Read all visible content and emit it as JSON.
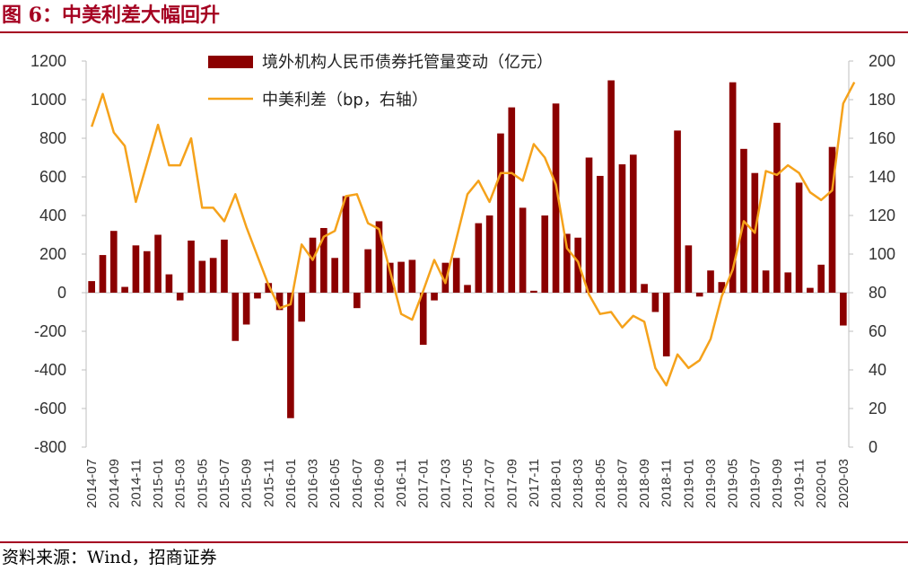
{
  "figure": {
    "title": "图 6：中美利差大幅回升",
    "source": "资料来源：Wind，招商证券",
    "colors": {
      "accent": "#a50021",
      "bar": "#8b0000",
      "line": "#f5a21b"
    }
  },
  "chart_data": {
    "type": "bar+line",
    "x_labels": [
      "2014-07",
      "2014-09",
      "2014-11",
      "2015-01",
      "2015-03",
      "2015-05",
      "2015-07",
      "2015-09",
      "2015-11",
      "2016-01",
      "2016-03",
      "2016-05",
      "2016-07",
      "2016-09",
      "2016-11",
      "2017-01",
      "2017-03",
      "2017-05",
      "2017-07",
      "2017-09",
      "2017-11",
      "2018-01",
      "2018-03",
      "2018-05",
      "2018-07",
      "2018-09",
      "2018-11",
      "2019-01",
      "2019-03",
      "2019-05",
      "2019-07",
      "2019-09",
      "2019-11",
      "2020-01",
      "2020-03"
    ],
    "series": [
      {
        "name": "境外机构人民币债券托管量变动（亿元）",
        "type": "bar",
        "axis": "left",
        "color": "#8b0000",
        "values": [
          60,
          195,
          320,
          30,
          245,
          215,
          300,
          95,
          -40,
          270,
          165,
          180,
          275,
          -250,
          -165,
          -30,
          50,
          -90,
          -650,
          -150,
          285,
          335,
          180,
          500,
          -80,
          225,
          370,
          155,
          160,
          170,
          -270,
          -40,
          155,
          180,
          40,
          360,
          400,
          825,
          960,
          440,
          10,
          400,
          980,
          305,
          285,
          700,
          605,
          1100,
          665,
          715,
          45,
          -100,
          -330,
          840,
          245,
          -20,
          115,
          55,
          1090,
          745,
          620,
          115,
          880,
          105,
          570,
          25,
          145,
          755,
          -170
        ]
      },
      {
        "name": "中美利差（bp，右轴）",
        "type": "line",
        "axis": "right",
        "color": "#f5a21b",
        "values": [
          166,
          183,
          163,
          156,
          127,
          147,
          167,
          146,
          146,
          160,
          124,
          124,
          117,
          131,
          114,
          99,
          84,
          72,
          74,
          105,
          97,
          109,
          112,
          130,
          131,
          116,
          113,
          91,
          69,
          66,
          81,
          97,
          85,
          108,
          131,
          138,
          127,
          142,
          142,
          138,
          157,
          150,
          136,
          103,
          96,
          79,
          69,
          70,
          62,
          68,
          65,
          41,
          32,
          48,
          41,
          45,
          56,
          78,
          92,
          117,
          111,
          143,
          141,
          146,
          142,
          132,
          128,
          133,
          178,
          189
        ]
      }
    ],
    "left_axis": {
      "min": -800,
      "max": 1200,
      "step": 200
    },
    "right_axis": {
      "min": 0,
      "max": 200,
      "step": 20
    },
    "legend_position": "top-center",
    "grid": false
  }
}
